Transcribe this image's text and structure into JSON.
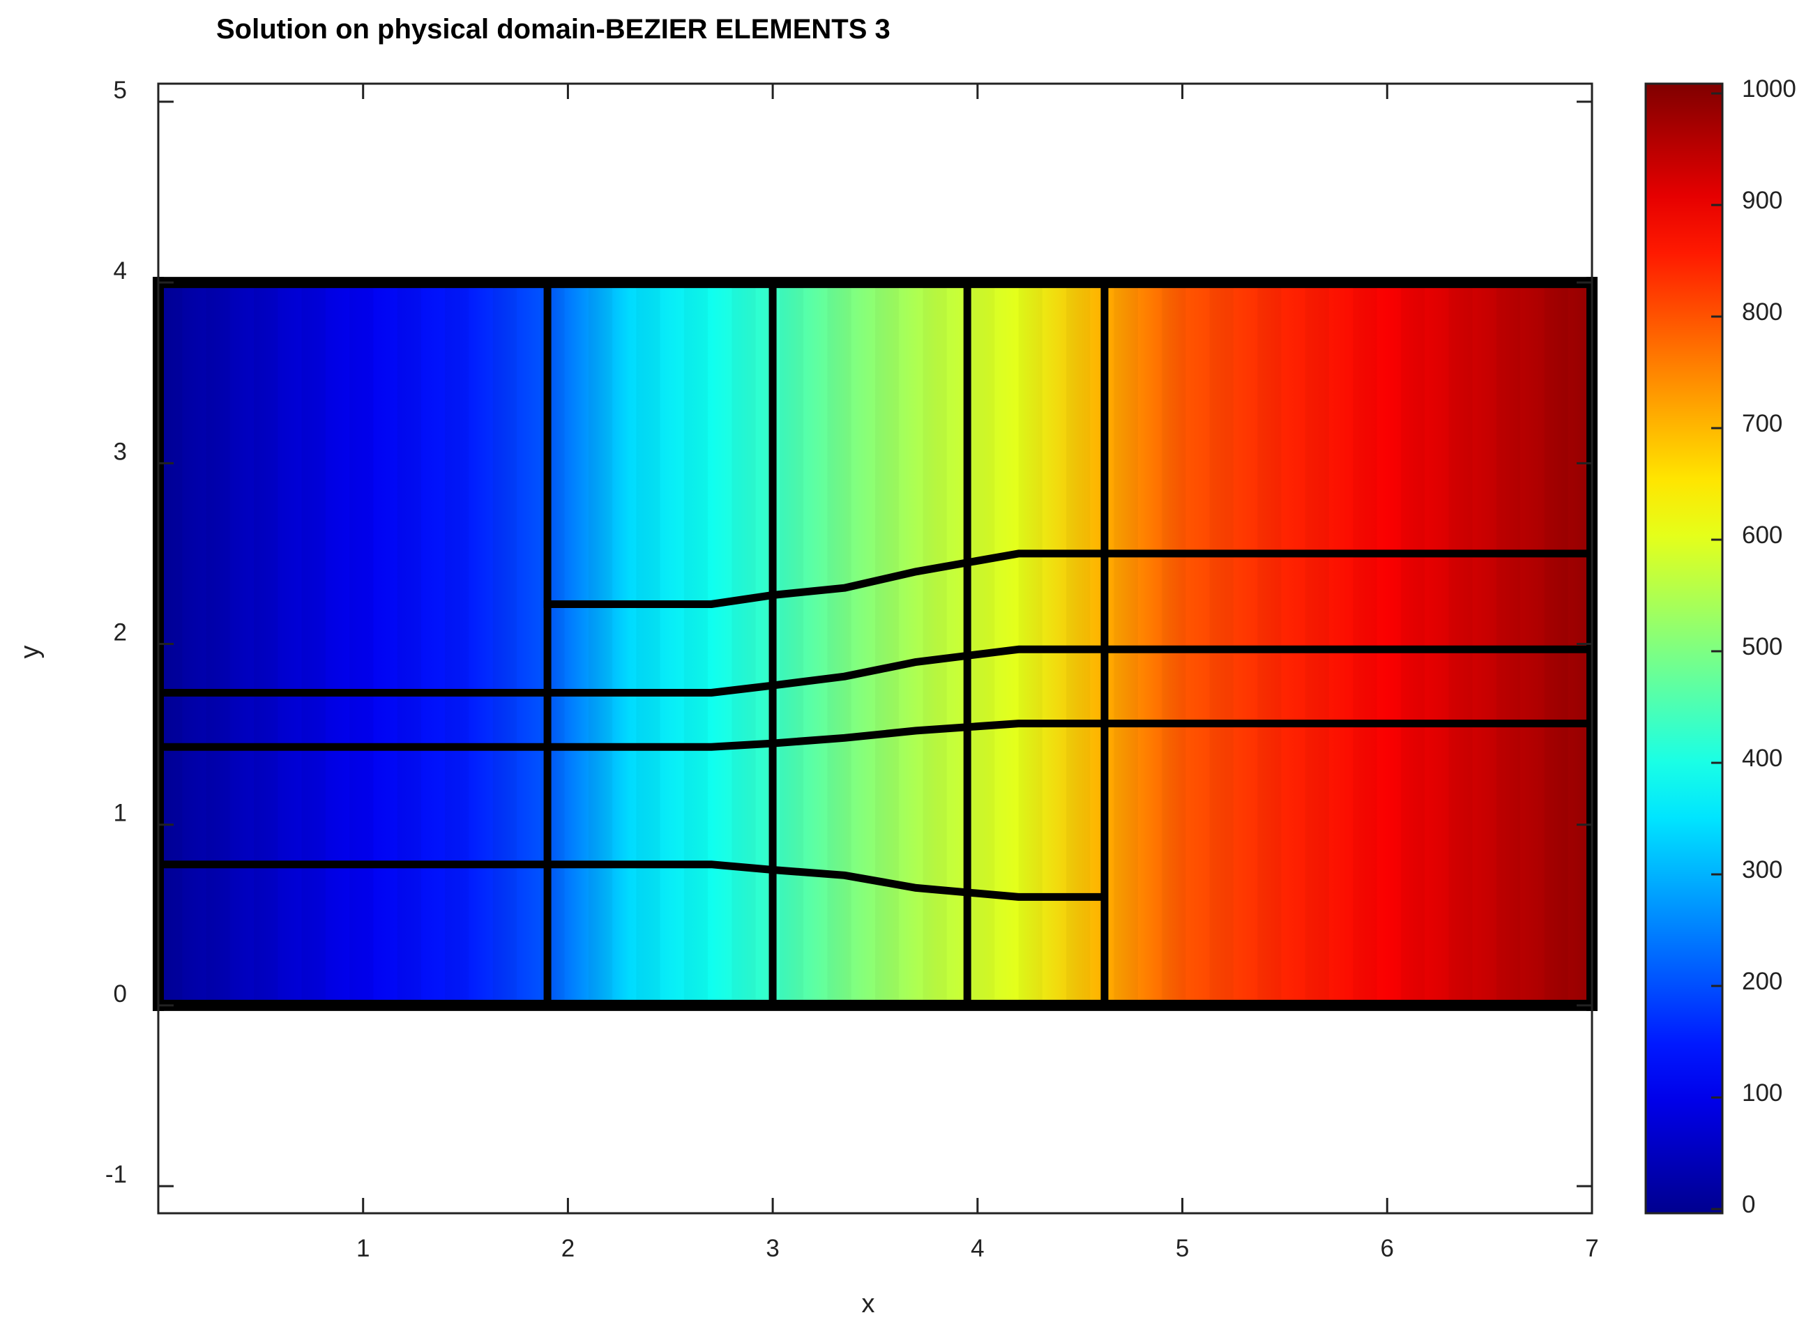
{
  "chart_data": {
    "type": "heatmap",
    "title": "Solution on physical domain-BEZIER ELEMENTS 3",
    "xlabel": "x",
    "ylabel": "y",
    "xlim": [
      0,
      7
    ],
    "ylim": [
      -1.15,
      5.1
    ],
    "xticks": [
      "1",
      "2",
      "3",
      "4",
      "5",
      "6",
      "7"
    ],
    "yticks": [
      "-1",
      "0",
      "1",
      "2",
      "3",
      "4",
      "5"
    ],
    "colormap": "jet",
    "colorbar": {
      "range": [
        0,
        1000
      ],
      "ticks": [
        "0",
        "100",
        "200",
        "300",
        "400",
        "500",
        "600",
        "700",
        "800",
        "900",
        "1000"
      ],
      "colors": [
        "#00008f",
        "#0000ff",
        "#00ffff",
        "#ffff00",
        "#ff0000",
        "#800000"
      ]
    },
    "domain": {
      "x": [
        0,
        7
      ],
      "y": [
        0,
        4
      ]
    },
    "field_columns": {
      "x": [
        0,
        0.5,
        1,
        1.5,
        1.9,
        2.3,
        2.7,
        3.0,
        3.4,
        3.8,
        4.2,
        4.6,
        5,
        5.5,
        6,
        6.5,
        7
      ],
      "value": [
        10,
        60,
        110,
        150,
        210,
        340,
        390,
        430,
        500,
        560,
        600,
        700,
        790,
        840,
        880,
        930,
        980
      ]
    },
    "element_boundaries": {
      "vertical": [
        [
          [
            0,
            4
          ],
          [
            0,
            0
          ]
        ],
        [
          [
            1.9,
            4
          ],
          [
            1.9,
            0
          ]
        ],
        [
          [
            3.0,
            4
          ],
          [
            3.0,
            0
          ]
        ],
        [
          [
            3.95,
            4
          ],
          [
            3.95,
            0
          ]
        ],
        [
          [
            4.62,
            4
          ],
          [
            4.62,
            0
          ]
        ],
        [
          [
            7,
            4
          ],
          [
            7,
            0
          ]
        ]
      ],
      "horizontal": [
        [
          [
            0,
            4
          ],
          [
            7,
            4
          ]
        ],
        [
          [
            0,
            0
          ],
          [
            7,
            0
          ]
        ],
        [
          [
            1.9,
            2.22
          ],
          [
            2.7,
            2.22
          ],
          [
            3.0,
            2.27
          ],
          [
            3.35,
            2.31
          ],
          [
            3.7,
            2.4
          ],
          [
            4.2,
            2.5
          ],
          [
            7,
            2.5
          ]
        ],
        [
          [
            0,
            1.73
          ],
          [
            2.7,
            1.73
          ],
          [
            3.0,
            1.77
          ],
          [
            3.35,
            1.82
          ],
          [
            3.7,
            1.9
          ],
          [
            4.2,
            1.97
          ],
          [
            7,
            1.97
          ]
        ],
        [
          [
            0,
            1.43
          ],
          [
            2.7,
            1.43
          ],
          [
            3.0,
            1.45
          ],
          [
            3.35,
            1.48
          ],
          [
            3.7,
            1.52
          ],
          [
            4.2,
            1.56
          ],
          [
            7,
            1.56
          ]
        ],
        [
          [
            0,
            0.78
          ],
          [
            2.7,
            0.78
          ],
          [
            3.0,
            0.75
          ],
          [
            3.35,
            0.72
          ],
          [
            3.7,
            0.65
          ],
          [
            4.2,
            0.6
          ],
          [
            4.62,
            0.6
          ]
        ]
      ]
    }
  }
}
